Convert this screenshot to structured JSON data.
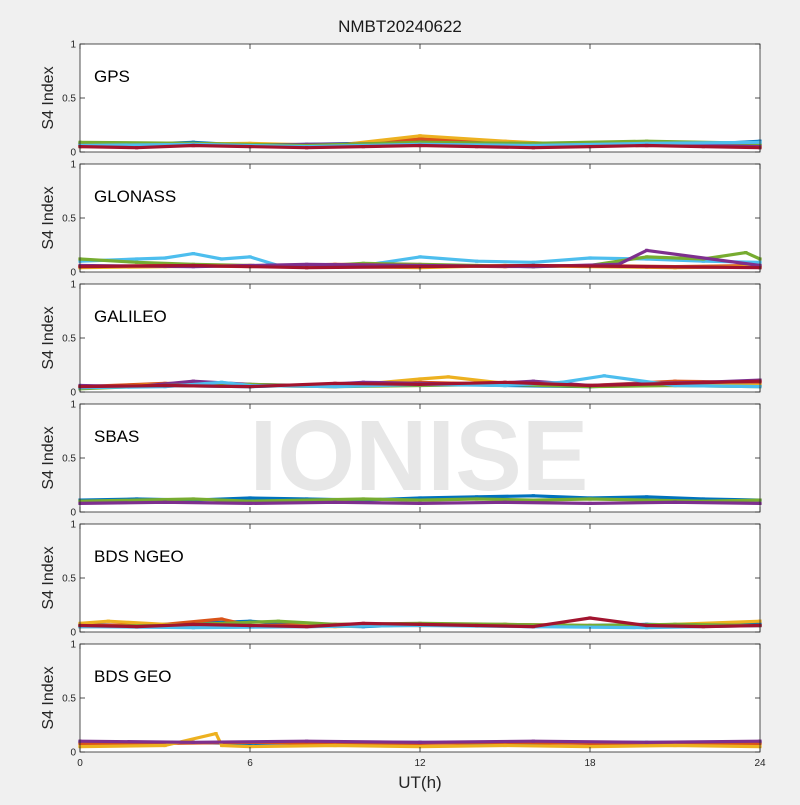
{
  "figure": {
    "title": "NMBT20240622",
    "watermark": "IONISE"
  },
  "colors": [
    "#0072BD",
    "#D95319",
    "#EDB120",
    "#7E2F8E",
    "#77AC30",
    "#4DBEEE",
    "#A2142F"
  ],
  "chart_data": [
    {
      "type": "scatter",
      "title": "GPS",
      "xlabel": "",
      "ylabel": "S4 Index",
      "xlim": [
        0,
        24
      ],
      "ylim": [
        0,
        1
      ],
      "yticks": [
        0,
        0.5,
        1
      ],
      "ytick_labels": [
        "0",
        "0.5",
        "1"
      ],
      "series": [
        {
          "color": "#0072BD",
          "x": [
            0,
            2,
            4,
            6,
            8,
            10,
            12,
            14,
            16,
            18,
            20,
            22,
            24
          ],
          "y": [
            0.08,
            0.07,
            0.09,
            0.06,
            0.07,
            0.08,
            0.1,
            0.07,
            0.08,
            0.06,
            0.09,
            0.07,
            0.1
          ]
        },
        {
          "color": "#D95319",
          "x": [
            0,
            3,
            6,
            9,
            12,
            15,
            18,
            21,
            24
          ],
          "y": [
            0.06,
            0.08,
            0.07,
            0.06,
            0.12,
            0.09,
            0.07,
            0.08,
            0.06
          ]
        },
        {
          "color": "#EDB120",
          "x": [
            0,
            3,
            6,
            9,
            12,
            15,
            18,
            21,
            24
          ],
          "y": [
            0.05,
            0.07,
            0.08,
            0.06,
            0.15,
            0.1,
            0.06,
            0.07,
            0.05
          ]
        },
        {
          "color": "#7E2F8E",
          "x": [
            0,
            4,
            8,
            12,
            16,
            20,
            24
          ],
          "y": [
            0.07,
            0.06,
            0.07,
            0.08,
            0.07,
            0.06,
            0.07
          ]
        },
        {
          "color": "#77AC30",
          "x": [
            0,
            4,
            8,
            12,
            16,
            20,
            24
          ],
          "y": [
            0.09,
            0.08,
            0.06,
            0.09,
            0.08,
            0.1,
            0.08
          ]
        },
        {
          "color": "#4DBEEE",
          "x": [
            0,
            4,
            8,
            12,
            16,
            20,
            24
          ],
          "y": [
            0.06,
            0.07,
            0.05,
            0.07,
            0.06,
            0.08,
            0.09
          ]
        },
        {
          "color": "#A2142F",
          "x": [
            0,
            2,
            4,
            6,
            8,
            10,
            12,
            14,
            16,
            18,
            20,
            22,
            24
          ],
          "y": [
            0.05,
            0.04,
            0.06,
            0.05,
            0.04,
            0.05,
            0.06,
            0.05,
            0.04,
            0.05,
            0.06,
            0.05,
            0.04
          ]
        }
      ]
    },
    {
      "type": "scatter",
      "title": "GLONASS",
      "xlabel": "",
      "ylabel": "S4 Index",
      "xlim": [
        0,
        24
      ],
      "ylim": [
        0,
        1
      ],
      "yticks": [
        0,
        0.5,
        1
      ],
      "ytick_labels": [
        "0",
        "0.5",
        "1"
      ],
      "series": [
        {
          "color": "#4DBEEE",
          "x": [
            0,
            1,
            2,
            3,
            4,
            5,
            6,
            7,
            8,
            10,
            12,
            14,
            16,
            18,
            20,
            22,
            24
          ],
          "y": [
            0.1,
            0.11,
            0.12,
            0.13,
            0.17,
            0.12,
            0.14,
            0.06,
            0.05,
            0.06,
            0.14,
            0.1,
            0.09,
            0.13,
            0.12,
            0.1,
            0.09
          ]
        },
        {
          "color": "#77AC30",
          "x": [
            0,
            2,
            4,
            6,
            8,
            10,
            12,
            14,
            16,
            18,
            20,
            22,
            23.5,
            24
          ],
          "y": [
            0.12,
            0.09,
            0.07,
            0.06,
            0.05,
            0.08,
            0.07,
            0.06,
            0.05,
            0.06,
            0.14,
            0.12,
            0.18,
            0.12
          ]
        },
        {
          "color": "#D95319",
          "x": [
            0,
            3,
            6,
            9,
            12,
            15,
            18,
            21,
            24
          ],
          "y": [
            0.05,
            0.06,
            0.05,
            0.07,
            0.06,
            0.05,
            0.06,
            0.05,
            0.06
          ]
        },
        {
          "color": "#EDB120",
          "x": [
            0,
            3,
            6,
            9,
            12,
            15,
            18,
            21,
            24
          ],
          "y": [
            0.04,
            0.05,
            0.06,
            0.05,
            0.04,
            0.06,
            0.05,
            0.04,
            0.05
          ]
        },
        {
          "color": "#7E2F8E",
          "x": [
            0,
            4,
            8,
            12,
            16,
            19,
            20,
            24
          ],
          "y": [
            0.06,
            0.05,
            0.07,
            0.06,
            0.05,
            0.07,
            0.2,
            0.06
          ]
        },
        {
          "color": "#A2142F",
          "x": [
            0,
            4,
            8,
            12,
            16,
            20,
            24
          ],
          "y": [
            0.05,
            0.06,
            0.04,
            0.05,
            0.06,
            0.05,
            0.04
          ]
        }
      ]
    },
    {
      "type": "scatter",
      "title": "GALILEO",
      "xlabel": "",
      "ylabel": "S4 Index",
      "xlim": [
        0,
        24
      ],
      "ylim": [
        0,
        1
      ],
      "yticks": [
        0,
        0.5,
        1
      ],
      "ytick_labels": [
        "0",
        "0.5",
        "1"
      ],
      "series": [
        {
          "color": "#0072BD",
          "x": [
            0,
            3,
            6,
            9,
            12,
            15,
            18,
            21,
            24
          ],
          "y": [
            0.04,
            0.06,
            0.05,
            0.07,
            0.08,
            0.06,
            0.05,
            0.07,
            0.06
          ]
        },
        {
          "color": "#D95319",
          "x": [
            0,
            3,
            6,
            9,
            12,
            15,
            18,
            21,
            24
          ],
          "y": [
            0.05,
            0.08,
            0.06,
            0.05,
            0.09,
            0.07,
            0.06,
            0.1,
            0.09
          ]
        },
        {
          "color": "#EDB120",
          "x": [
            0,
            3,
            6,
            9,
            12,
            13,
            15,
            18,
            21,
            24
          ],
          "y": [
            0.04,
            0.07,
            0.06,
            0.05,
            0.12,
            0.14,
            0.08,
            0.06,
            0.07,
            0.06
          ]
        },
        {
          "color": "#7E2F8E",
          "x": [
            0,
            2,
            4,
            6,
            8,
            10,
            12,
            14,
            16,
            18,
            20,
            22,
            24
          ],
          "y": [
            0.06,
            0.05,
            0.1,
            0.07,
            0.06,
            0.09,
            0.08,
            0.07,
            0.1,
            0.06,
            0.08,
            0.09,
            0.11
          ]
        },
        {
          "color": "#77AC30",
          "x": [
            0,
            3,
            6,
            9,
            12,
            15,
            18,
            21,
            24
          ],
          "y": [
            0.03,
            0.06,
            0.07,
            0.05,
            0.06,
            0.07,
            0.05,
            0.06,
            0.05
          ]
        },
        {
          "color": "#4DBEEE",
          "x": [
            0,
            3,
            5,
            6,
            9,
            12,
            15,
            17,
            18.5,
            21,
            24
          ],
          "y": [
            0.04,
            0.05,
            0.09,
            0.06,
            0.05,
            0.07,
            0.06,
            0.09,
            0.15,
            0.06,
            0.05
          ]
        },
        {
          "color": "#A2142F",
          "x": [
            0,
            3,
            6,
            9,
            12,
            15,
            18,
            21,
            24
          ],
          "y": [
            0.05,
            0.06,
            0.05,
            0.08,
            0.07,
            0.09,
            0.06,
            0.08,
            0.1
          ]
        }
      ]
    },
    {
      "type": "scatter",
      "title": "SBAS",
      "xlabel": "",
      "ylabel": "S4 Index",
      "xlim": [
        0,
        24
      ],
      "ylim": [
        0,
        1
      ],
      "yticks": [
        0,
        0.5,
        1
      ],
      "ytick_labels": [
        "0",
        "0.5",
        "1"
      ],
      "series": [
        {
          "color": "#0072BD",
          "x": [
            0,
            2,
            4,
            6,
            8,
            10,
            12,
            14,
            16,
            18,
            20,
            22,
            24
          ],
          "y": [
            0.11,
            0.12,
            0.11,
            0.13,
            0.12,
            0.11,
            0.13,
            0.14,
            0.15,
            0.13,
            0.14,
            0.12,
            0.11
          ]
        },
        {
          "color": "#77AC30",
          "x": [
            0,
            2,
            4,
            6,
            8,
            10,
            12,
            14,
            16,
            18,
            20,
            22,
            24
          ],
          "y": [
            0.1,
            0.11,
            0.12,
            0.1,
            0.11,
            0.12,
            0.11,
            0.12,
            0.11,
            0.12,
            0.11,
            0.1,
            0.11
          ]
        },
        {
          "color": "#7E2F8E",
          "x": [
            0,
            3,
            6,
            9,
            12,
            15,
            18,
            21,
            24
          ],
          "y": [
            0.08,
            0.09,
            0.08,
            0.09,
            0.08,
            0.09,
            0.08,
            0.09,
            0.08
          ]
        }
      ]
    },
    {
      "type": "scatter",
      "title": "BDS NGEO",
      "xlabel": "",
      "ylabel": "S4 Index",
      "xlim": [
        0,
        24
      ],
      "ylim": [
        0,
        1
      ],
      "yticks": [
        0,
        0.5,
        1
      ],
      "ytick_labels": [
        "0",
        "0.5",
        "1"
      ],
      "series": [
        {
          "color": "#0072BD",
          "x": [
            0,
            2,
            4,
            6,
            8,
            10,
            12,
            14,
            16,
            18,
            20,
            22,
            24
          ],
          "y": [
            0.07,
            0.06,
            0.08,
            0.1,
            0.06,
            0.05,
            0.07,
            0.06,
            0.05,
            0.06,
            0.07,
            0.06,
            0.08
          ]
        },
        {
          "color": "#D95319",
          "x": [
            0,
            3,
            5,
            6,
            9,
            12,
            15,
            18,
            21,
            24
          ],
          "y": [
            0.06,
            0.07,
            0.12,
            0.06,
            0.07,
            0.06,
            0.07,
            0.06,
            0.05,
            0.06
          ]
        },
        {
          "color": "#EDB120",
          "x": [
            0,
            1,
            3,
            6,
            9,
            12,
            15,
            18,
            21,
            24
          ],
          "y": [
            0.08,
            0.1,
            0.07,
            0.06,
            0.05,
            0.07,
            0.06,
            0.05,
            0.07,
            0.1
          ]
        },
        {
          "color": "#7E2F8E",
          "x": [
            0,
            4,
            8,
            12,
            16,
            20,
            24
          ],
          "y": [
            0.05,
            0.06,
            0.05,
            0.07,
            0.06,
            0.05,
            0.06
          ]
        },
        {
          "color": "#77AC30",
          "x": [
            0,
            3,
            6,
            7,
            9,
            12,
            15,
            18,
            21,
            24
          ],
          "y": [
            0.05,
            0.06,
            0.09,
            0.1,
            0.07,
            0.08,
            0.07,
            0.06,
            0.07,
            0.06
          ]
        },
        {
          "color": "#4DBEEE",
          "x": [
            0,
            4,
            8,
            12,
            16,
            20,
            24
          ],
          "y": [
            0.05,
            0.04,
            0.05,
            0.06,
            0.05,
            0.04,
            0.06
          ]
        },
        {
          "color": "#A2142F",
          "x": [
            0,
            2,
            4,
            6,
            8,
            10,
            12,
            14,
            16,
            18,
            20,
            22,
            24
          ],
          "y": [
            0.06,
            0.05,
            0.07,
            0.06,
            0.05,
            0.08,
            0.07,
            0.06,
            0.05,
            0.13,
            0.06,
            0.05,
            0.06
          ]
        }
      ]
    },
    {
      "type": "scatter",
      "title": "BDS GEO",
      "xlabel": "UT(h)",
      "ylabel": "S4 Index",
      "xlim": [
        0,
        24
      ],
      "ylim": [
        0,
        1
      ],
      "yticks": [
        0,
        0.5,
        1
      ],
      "ytick_labels": [
        "0",
        "0.5",
        "1"
      ],
      "xticks": [
        0,
        6,
        12,
        18,
        24
      ],
      "xtick_labels": [
        "0",
        "6",
        "12",
        "18",
        "24"
      ],
      "series": [
        {
          "color": "#0072BD",
          "x": [
            0,
            3,
            6,
            9,
            12,
            15,
            18,
            21,
            24
          ],
          "y": [
            0.09,
            0.09,
            0.08,
            0.09,
            0.09,
            0.08,
            0.09,
            0.09,
            0.09
          ]
        },
        {
          "color": "#D95319",
          "x": [
            0,
            3,
            6,
            9,
            12,
            15,
            18,
            21,
            24
          ],
          "y": [
            0.08,
            0.08,
            0.09,
            0.08,
            0.08,
            0.09,
            0.08,
            0.08,
            0.08
          ]
        },
        {
          "color": "#EDB120",
          "x": [
            0,
            3,
            4.8,
            5,
            6,
            9,
            12,
            15,
            18,
            21,
            24
          ],
          "y": [
            0.05,
            0.06,
            0.17,
            0.06,
            0.05,
            0.06,
            0.05,
            0.06,
            0.05,
            0.06,
            0.05
          ]
        },
        {
          "color": "#7E2F8E",
          "x": [
            0,
            4,
            8,
            12,
            16,
            20,
            24
          ],
          "y": [
            0.1,
            0.09,
            0.1,
            0.09,
            0.1,
            0.09,
            0.1
          ]
        }
      ]
    }
  ]
}
